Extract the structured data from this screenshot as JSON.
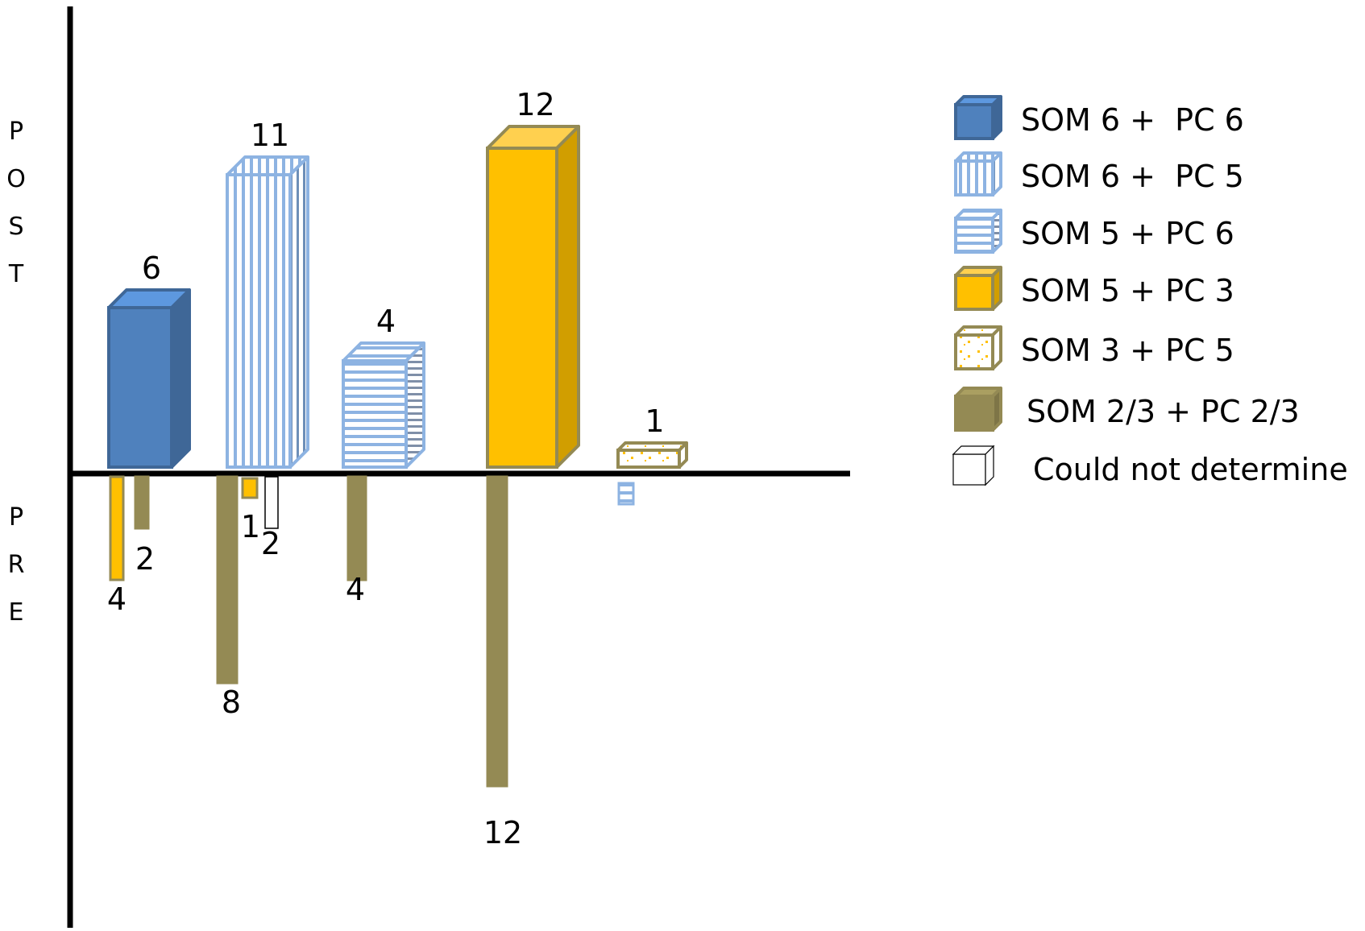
{
  "chart_data": {
    "type": "bar",
    "post_label": "POST",
    "pre_label": "PRE",
    "categories": [
      "SOM 6 + PC 6",
      "SOM 6 + PC 5",
      "SOM 5 + PC 6",
      "SOM 5 + PC 3",
      "SOM 3 + PC 5"
    ],
    "post": [
      {
        "category": "SOM 6 + PC 6",
        "value": 6,
        "label": "6"
      },
      {
        "category": "SOM 6 + PC 5",
        "value": 11,
        "label": "11"
      },
      {
        "category": "SOM 5 + PC 6",
        "value": 4,
        "label": "4"
      },
      {
        "category": "SOM 5 + PC 3",
        "value": 12,
        "label": "12"
      },
      {
        "category": "SOM 3 + PC 5",
        "value": 1,
        "label": "1"
      }
    ],
    "pre": [
      {
        "group": "SOM 6 + PC 6",
        "from": "SOM 5 + PC 3",
        "value": 4,
        "label": "4"
      },
      {
        "group": "SOM 6 + PC 6",
        "from": "SOM 2/3 + PC 2/3",
        "value": 2,
        "label": "2"
      },
      {
        "group": "SOM 6 + PC 5",
        "from": "SOM 2/3 + PC 2/3",
        "value": 8,
        "label": "8"
      },
      {
        "group": "SOM 6 + PC 5",
        "from": "SOM 5 + PC 3",
        "value": 1,
        "label": "1"
      },
      {
        "group": "SOM 6 + PC 5",
        "from": "Could not determine",
        "value": 2,
        "label": "2"
      },
      {
        "group": "SOM 5 + PC 6",
        "from": "SOM 2/3 + PC 2/3",
        "value": 4,
        "label": "4"
      },
      {
        "group": "SOM 5 + PC 3",
        "from": "SOM 2/3 + PC 2/3",
        "value": 12,
        "label": "12"
      },
      {
        "group": "SOM 3 + PC 5",
        "from": "SOM 5 + PC 6",
        "value": 1,
        "label": ""
      }
    ],
    "legend": {
      "position": "right",
      "items": [
        {
          "name": "SOM 6 +  PC 6",
          "fill": "solid-blue"
        },
        {
          "name": "SOM 6 +  PC 5",
          "fill": "vertical-stripes-light-blue"
        },
        {
          "name": "SOM 5 + PC 6",
          "fill": "horizontal-stripes-light-blue"
        },
        {
          "name": "SOM 5 + PC 3",
          "fill": "solid-gold"
        },
        {
          "name": "SOM 3 + PC 5",
          "fill": "confetti-gold"
        },
        {
          "name": "SOM 2/3 + PC 2/3",
          "fill": "solid-olive"
        },
        {
          "name": "Could not determine",
          "fill": "none"
        }
      ]
    },
    "colors": {
      "blue": "#4f81bd",
      "light_blue": "#8db3e2",
      "gold": "#ffc000",
      "olive": "#948a54",
      "axis": "#000000"
    }
  }
}
